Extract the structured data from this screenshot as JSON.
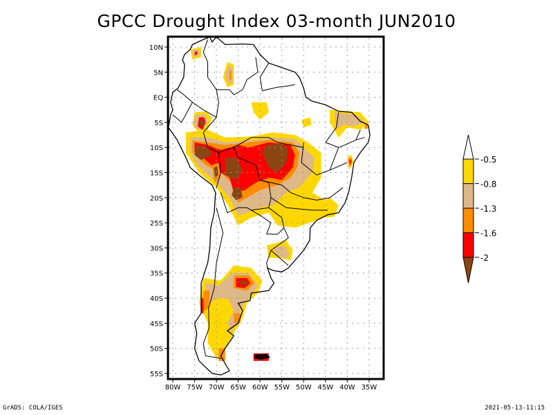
{
  "title": "GPCC Drought Index 03-month JUN2010",
  "map": {
    "region": "South America",
    "variable": "GPCC Drought Index",
    "accumulation": "03-month",
    "period": "JUN2010",
    "lat_range": [
      -55,
      10
    ],
    "lon_range": [
      -80,
      -35
    ],
    "lat_ticks": [
      "10N",
      "5N",
      "EQ",
      "5S",
      "10S",
      "15S",
      "20S",
      "25S",
      "30S",
      "35S",
      "40S",
      "45S",
      "50S",
      "55S"
    ],
    "lat_values": [
      10,
      5,
      0,
      -5,
      -10,
      -15,
      -20,
      -25,
      -30,
      -35,
      -40,
      -45,
      -50,
      -55
    ],
    "lon_ticks": [
      "80W",
      "75W",
      "70W",
      "65W",
      "60W",
      "55W",
      "50W",
      "45W",
      "40W",
      "35W"
    ],
    "lon_values": [
      -80,
      -75,
      -70,
      -65,
      -60,
      -55,
      -50,
      -45,
      -40,
      -35
    ],
    "grid": "dotted"
  },
  "colorbar": {
    "levels": [
      "-0.5",
      "-0.8",
      "-1.3",
      "-1.6",
      "-2"
    ],
    "colors": {
      "above": "#ffffff",
      "b1": "#ffd700",
      "b2": "#deb887",
      "b3": "#ff8c00",
      "b4": "#ff0000",
      "below": "#8b4513"
    }
  },
  "footer": {
    "left": "GrADS: COLA/IGES",
    "right": "2021-05-13-11:15"
  }
}
